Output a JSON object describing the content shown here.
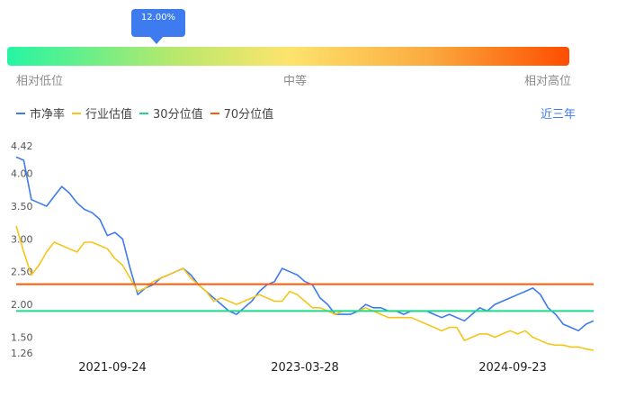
{
  "percentile": {
    "label": "12.00%",
    "value_percent": 12
  },
  "gauge": {
    "low_label": "相对低位",
    "mid_label": "中等",
    "high_label": "相对高位"
  },
  "legend": {
    "items": [
      {
        "label": "市净率",
        "color": "#3d7bef"
      },
      {
        "label": "行业估值",
        "color": "#f5c518"
      },
      {
        "label": "30分位值",
        "color": "#1fd98a"
      },
      {
        "label": "70分位值",
        "color": "#fb5a0a"
      }
    ]
  },
  "range_link": "近三年",
  "chart_data": {
    "type": "line",
    "y_ticks": [
      4.42,
      4.0,
      3.5,
      3.0,
      2.5,
      2.0,
      1.5,
      1.26
    ],
    "x_tick_labels": [
      "2021-09-24",
      "2023-03-28",
      "2024-09-23"
    ],
    "ylim": [
      1.26,
      4.42
    ],
    "grid": false,
    "legend_position": "top-left",
    "series": [
      {
        "name": "市净率",
        "color": "#3d7bef",
        "values": [
          4.25,
          4.2,
          3.6,
          3.55,
          3.5,
          3.65,
          3.8,
          3.7,
          3.55,
          3.45,
          3.4,
          3.3,
          3.05,
          3.1,
          3.0,
          2.55,
          2.15,
          2.25,
          2.3,
          2.4,
          2.45,
          2.5,
          2.55,
          2.45,
          2.3,
          2.2,
          2.1,
          2.0,
          1.9,
          1.85,
          1.95,
          2.05,
          2.2,
          2.3,
          2.35,
          2.55,
          2.5,
          2.45,
          2.35,
          2.3,
          2.1,
          2.0,
          1.85,
          1.85,
          1.85,
          1.9,
          2.0,
          1.95,
          1.95,
          1.9,
          1.9,
          1.85,
          1.9,
          1.9,
          1.9,
          1.85,
          1.8,
          1.85,
          1.8,
          1.75,
          1.85,
          1.95,
          1.9,
          2.0,
          2.05,
          2.1,
          2.15,
          2.2,
          2.25,
          2.15,
          1.95,
          1.85,
          1.7,
          1.65,
          1.6,
          1.7,
          1.75
        ]
      },
      {
        "name": "行业估值",
        "color": "#f5c518",
        "values": [
          3.2,
          2.8,
          2.45,
          2.6,
          2.8,
          2.95,
          2.9,
          2.85,
          2.8,
          2.95,
          2.95,
          2.9,
          2.85,
          2.7,
          2.6,
          2.4,
          2.2,
          2.25,
          2.35,
          2.4,
          2.45,
          2.5,
          2.55,
          2.4,
          2.3,
          2.2,
          2.05,
          2.1,
          2.05,
          2.0,
          2.05,
          2.1,
          2.15,
          2.1,
          2.05,
          2.05,
          2.2,
          2.15,
          2.05,
          1.95,
          1.95,
          1.9,
          1.85,
          1.9,
          1.9,
          1.9,
          1.95,
          1.9,
          1.85,
          1.8,
          1.8,
          1.8,
          1.8,
          1.75,
          1.7,
          1.65,
          1.6,
          1.65,
          1.65,
          1.45,
          1.5,
          1.55,
          1.55,
          1.5,
          1.55,
          1.6,
          1.55,
          1.6,
          1.5,
          1.45,
          1.4,
          1.38,
          1.38,
          1.35,
          1.35,
          1.32,
          1.3
        ]
      },
      {
        "name": "30分位值",
        "color": "#1fd98a",
        "values": [
          1.9,
          1.9
        ]
      },
      {
        "name": "70分位值",
        "color": "#fb5a0a",
        "values": [
          2.31,
          2.31
        ]
      }
    ]
  }
}
